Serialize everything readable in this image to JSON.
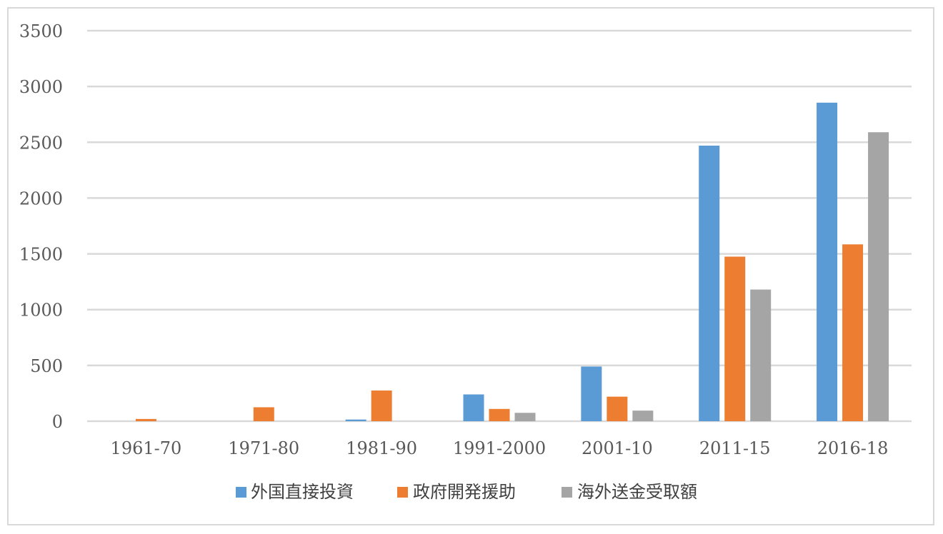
{
  "chart_data": {
    "type": "bar",
    "categories": [
      "1961-70",
      "1971-80",
      "1981-90",
      "1991-2000",
      "2001-10",
      "2011-15",
      "2016-18"
    ],
    "series": [
      {
        "name": "外国直接投資",
        "color": "#5b9bd5",
        "values": [
          0,
          0,
          15,
          240,
          490,
          2470,
          2855
        ]
      },
      {
        "name": "政府開発援助",
        "color": "#ed7d31",
        "values": [
          20,
          125,
          275,
          110,
          220,
          1475,
          1585
        ]
      },
      {
        "name": "海外送金受取額",
        "color": "#a5a5a5",
        "values": [
          0,
          0,
          0,
          75,
          95,
          1180,
          2590
        ]
      }
    ],
    "ylim": [
      0,
      3500
    ],
    "yticks": [
      0,
      500,
      1000,
      1500,
      2000,
      2500,
      3000,
      3500
    ],
    "grid": true,
    "legend_position": "bottom"
  }
}
